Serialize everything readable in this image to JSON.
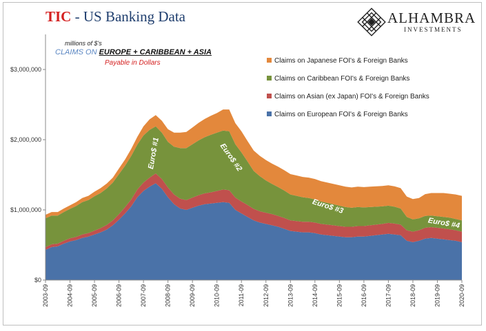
{
  "header": {
    "title_red": "TIC",
    "title_rest": " - US Banking Data",
    "logo_name": "ALHAMBRA",
    "logo_sub": "INVESTMENTS"
  },
  "subtitle": {
    "units": "millions of $'s",
    "claims_on": "CLAIMS ON ",
    "regions": "EUROPE + CARIBBEAN + ASIA",
    "payable": "Payable in Dollars"
  },
  "chart_data": {
    "type": "area",
    "stacked": true,
    "x": [
      "2003-09",
      "2003-12",
      "2004-03",
      "2004-06",
      "2004-09",
      "2004-12",
      "2005-03",
      "2005-06",
      "2005-09",
      "2005-12",
      "2006-03",
      "2006-06",
      "2006-09",
      "2006-12",
      "2007-03",
      "2007-06",
      "2007-09",
      "2007-12",
      "2008-03",
      "2008-06",
      "2008-09",
      "2008-12",
      "2009-03",
      "2009-06",
      "2009-09",
      "2009-12",
      "2010-03",
      "2010-06",
      "2010-09",
      "2010-12",
      "2011-03",
      "2011-06",
      "2011-09",
      "2011-12",
      "2012-03",
      "2012-06",
      "2012-09",
      "2012-12",
      "2013-03",
      "2013-06",
      "2013-09",
      "2013-12",
      "2014-03",
      "2014-06",
      "2014-09",
      "2014-12",
      "2015-03",
      "2015-06",
      "2015-09",
      "2015-12",
      "2016-03",
      "2016-06",
      "2016-09",
      "2016-12",
      "2017-03",
      "2017-06",
      "2017-09",
      "2017-12",
      "2018-03",
      "2018-06",
      "2018-09",
      "2018-12",
      "2019-03",
      "2019-06",
      "2019-09",
      "2019-12",
      "2020-03",
      "2020-06",
      "2020-09"
    ],
    "x_tick_labels": [
      "2003-09",
      "2004-09",
      "2005-09",
      "2006-09",
      "2007-09",
      "2008-09",
      "2009-09",
      "2010-09",
      "2011-09",
      "2012-09",
      "2013-09",
      "2014-09",
      "2015-09",
      "2016-09",
      "2017-09",
      "2018-09",
      "2019-09",
      "2020-09"
    ],
    "y_ticks": [
      0,
      1000000,
      2000000,
      3000000
    ],
    "y_tick_labels": [
      "$0",
      "$1,000,000",
      "$2,000,000",
      "$3,000,000"
    ],
    "ylim": [
      0,
      3000000
    ],
    "grid": false,
    "legend_position": "top-right",
    "series": [
      {
        "name": "Claims on European FOI's & Foreign Banks",
        "color": "#4a72a8",
        "values": [
          430000,
          470000,
          480000,
          520000,
          550000,
          570000,
          600000,
          620000,
          650000,
          680000,
          720000,
          780000,
          860000,
          950000,
          1050000,
          1180000,
          1270000,
          1330000,
          1380000,
          1300000,
          1180000,
          1080000,
          1020000,
          1000000,
          1030000,
          1060000,
          1080000,
          1090000,
          1100000,
          1110000,
          1100000,
          1000000,
          950000,
          900000,
          850000,
          820000,
          800000,
          780000,
          760000,
          730000,
          700000,
          690000,
          680000,
          680000,
          670000,
          650000,
          640000,
          630000,
          620000,
          610000,
          610000,
          620000,
          620000,
          630000,
          640000,
          650000,
          660000,
          650000,
          640000,
          560000,
          540000,
          560000,
          590000,
          600000,
          590000,
          580000,
          570000,
          560000,
          540000
        ]
      },
      {
        "name": "Claims on Asian (ex Japan) FOI's & Foreign Banks",
        "color": "#c0504d",
        "values": [
          40000,
          40000,
          40000,
          40000,
          45000,
          45000,
          50000,
          50000,
          55000,
          60000,
          65000,
          70000,
          80000,
          90000,
          100000,
          110000,
          120000,
          130000,
          140000,
          140000,
          140000,
          140000,
          140000,
          140000,
          145000,
          150000,
          155000,
          160000,
          170000,
          180000,
          180000,
          175000,
          170000,
          170000,
          165000,
          160000,
          160000,
          160000,
          155000,
          155000,
          150000,
          150000,
          150000,
          150000,
          150000,
          150000,
          150000,
          150000,
          150000,
          150000,
          150000,
          150000,
          150000,
          150000,
          150000,
          150000,
          155000,
          155000,
          150000,
          150000,
          150000,
          150000,
          155000,
          155000,
          155000,
          155000,
          155000,
          150000,
          150000
        ]
      },
      {
        "name": "Claims on Caribbean FOI's & Foreign Banks",
        "color": "#77933c",
        "values": [
          410000,
          410000,
          400000,
          410000,
          420000,
          440000,
          460000,
          470000,
          490000,
          500000,
          520000,
          540000,
          570000,
          590000,
          620000,
          640000,
          670000,
          680000,
          670000,
          660000,
          650000,
          680000,
          720000,
          740000,
          760000,
          780000,
          800000,
          820000,
          830000,
          840000,
          840000,
          760000,
          700000,
          620000,
          540000,
          500000,
          460000,
          430000,
          410000,
          390000,
          370000,
          360000,
          350000,
          340000,
          330000,
          320000,
          310000,
          300000,
          290000,
          280000,
          270000,
          270000,
          265000,
          260000,
          255000,
          250000,
          245000,
          240000,
          230000,
          190000,
          175000,
          170000,
          170000,
          165000,
          165000,
          165000,
          165000,
          160000,
          160000
        ]
      },
      {
        "name": "Claims on Japanese FOI's & Foreign Banks",
        "color": "#e3883c",
        "values": [
          50000,
          50000,
          50000,
          50000,
          50000,
          55000,
          60000,
          60000,
          65000,
          70000,
          70000,
          70000,
          80000,
          90000,
          100000,
          110000,
          130000,
          150000,
          160000,
          170000,
          180000,
          200000,
          220000,
          230000,
          240000,
          250000,
          260000,
          270000,
          280000,
          300000,
          310000,
          300000,
          300000,
          290000,
          290000,
          290000,
          290000,
          290000,
          290000,
          290000,
          290000,
          290000,
          290000,
          290000,
          290000,
          290000,
          290000,
          290000,
          290000,
          290000,
          290000,
          290000,
          290000,
          290000,
          290000,
          290000,
          290000,
          290000,
          290000,
          290000,
          290000,
          290000,
          310000,
          320000,
          330000,
          340000,
          340000,
          350000,
          350000
        ]
      }
    ],
    "legend_order": [
      3,
      2,
      1,
      0
    ],
    "annotations": [
      {
        "text": "Euro$ #1",
        "x": "2008-03",
        "y": 1800000,
        "angle": -80
      },
      {
        "text": "Euro$ #2",
        "x": "2011-03",
        "y": 1730000,
        "angle": 55
      },
      {
        "text": "Euro$ #3",
        "x": "2015-03",
        "y": 1020000,
        "angle": 18
      },
      {
        "text": "Euro$ #4",
        "x": "2019-12",
        "y": 780000,
        "angle": 10
      }
    ]
  }
}
